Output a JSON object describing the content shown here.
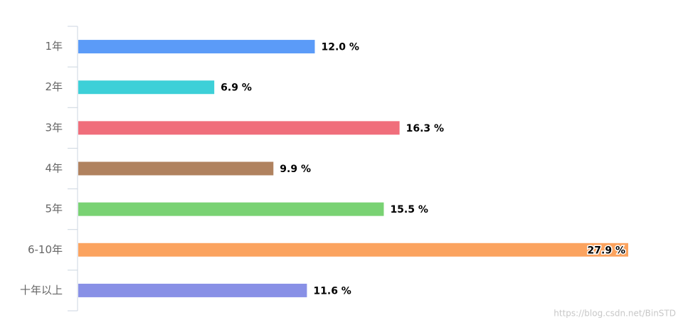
{
  "chart_data": {
    "type": "bar",
    "orientation": "horizontal",
    "categories": [
      "1年",
      "2年",
      "3年",
      "4年",
      "5年",
      "6-10年",
      "十年以上"
    ],
    "values": [
      12.0,
      6.9,
      16.3,
      9.9,
      15.5,
      27.9,
      11.6
    ],
    "value_labels": [
      "12.0 %",
      "6.9 %",
      "16.3 %",
      "9.9 %",
      "15.5 %",
      "27.9 %",
      "11.6 %"
    ],
    "colors": [
      "#5b9bf8",
      "#3dd0d8",
      "#f06e7b",
      "#b0825f",
      "#79d273",
      "#fba35f",
      "#8890e6"
    ]
  },
  "watermark": "https://blog.csdn.net/BinSTD"
}
